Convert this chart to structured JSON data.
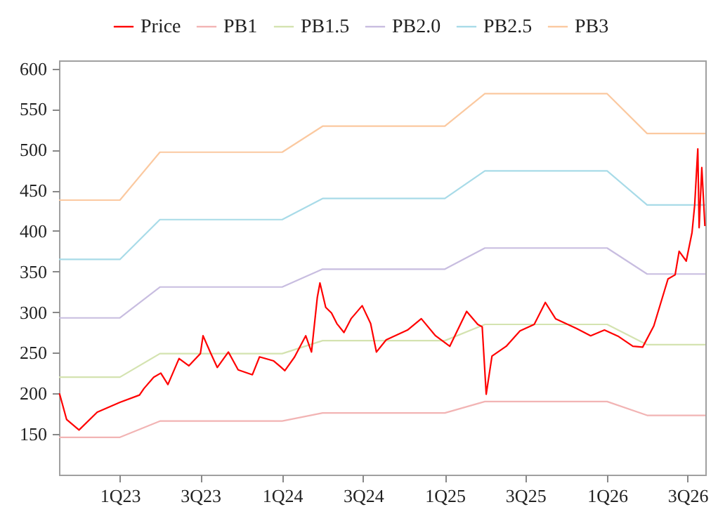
{
  "chart_data": {
    "type": "line",
    "legend": "top",
    "grid": false,
    "marker": "none",
    "line_style": "solid",
    "xlim": [
      "2022-08-17",
      "2026-08-10"
    ],
    "xticks": [
      {
        "value": "2023-01-01",
        "label": "1Q23"
      },
      {
        "value": "2023-07-01",
        "label": "3Q23"
      },
      {
        "value": "2024-01-01",
        "label": "1Q24"
      },
      {
        "value": "2024-07-01",
        "label": "3Q24"
      },
      {
        "value": "2025-01-01",
        "label": "1Q25"
      },
      {
        "value": "2025-07-01",
        "label": "3Q25"
      },
      {
        "value": "2026-01-01",
        "label": "1Q26"
      },
      {
        "value": "2026-07-01",
        "label": "3Q26"
      }
    ],
    "ylim": [
      100,
      610
    ],
    "yticks": [
      150,
      200,
      250,
      300,
      350,
      400,
      450,
      500,
      550,
      600
    ],
    "series": [
      {
        "name": "Price",
        "color": "#ff0000",
        "x": [
          "2022-08-18",
          "2022-09-03",
          "2022-10-01",
          "2022-11-11",
          "2023-01-01",
          "2023-02-14",
          "2023-02-24",
          "2023-03-18",
          "2023-04-03",
          "2023-04-19",
          "2023-05-14",
          "2023-06-05",
          "2023-07-01",
          "2023-07-07",
          "2023-07-23",
          "2023-08-08",
          "2023-09-02",
          "2023-09-24",
          "2023-10-26",
          "2023-11-11",
          "2023-12-13",
          "2023-12-28",
          "2024-01-07",
          "2024-01-29",
          "2024-02-23",
          "2024-03-07",
          "2024-03-20",
          "2024-03-26",
          "2024-04-08",
          "2024-04-21",
          "2024-05-03",
          "2024-05-19",
          "2024-06-04",
          "2024-06-29",
          "2024-07-18",
          "2024-07-31",
          "2024-08-22",
          "2024-10-09",
          "2024-11-09",
          "2024-12-11",
          "2025-01-12",
          "2025-02-19",
          "2025-03-16",
          "2025-03-26",
          "2025-04-04",
          "2025-04-17",
          "2025-05-19",
          "2025-06-19",
          "2025-07-21",
          "2025-08-15",
          "2025-09-07",
          "2025-10-24",
          "2025-11-25",
          "2025-12-26",
          "2026-01-27",
          "2026-02-28",
          "2026-03-22",
          "2026-04-16",
          "2026-05-02",
          "2026-05-18",
          "2026-06-03",
          "2026-06-12",
          "2026-06-28",
          "2026-07-11",
          "2026-07-17",
          "2026-07-24",
          "2026-07-27",
          "2026-08-02",
          "2026-08-09"
        ],
        "values": [
          200,
          168,
          155,
          177,
          189,
          198,
          206,
          220,
          225,
          211,
          243,
          234,
          249,
          271,
          251,
          232,
          251,
          229,
          223,
          245,
          240,
          233,
          228,
          245,
          271,
          251,
          318,
          336,
          306,
          299,
          286,
          275,
          292,
          308,
          286,
          251,
          266,
          278,
          292,
          271,
          258,
          301,
          285,
          282,
          199,
          246,
          258,
          277,
          285,
          312,
          292,
          280,
          271,
          278,
          270,
          258,
          257,
          283,
          312,
          341,
          346,
          375,
          363,
          398,
          432,
          501,
          404,
          478,
          406
        ]
      },
      {
        "name": "PB1",
        "color": "#f2b4b4",
        "x": [
          "2022-08-17",
          "2023-01-01",
          "2023-04-01",
          "2024-01-01",
          "2024-04-01",
          "2025-01-01",
          "2025-04-01",
          "2026-01-01",
          "2026-04-01",
          "2026-08-10"
        ],
        "values": [
          146,
          146,
          166,
          166,
          176,
          176,
          190,
          190,
          173,
          173
        ]
      },
      {
        "name": "PB1.5",
        "color": "#d4e3b0",
        "x": [
          "2022-08-17",
          "2023-01-01",
          "2023-04-01",
          "2024-01-01",
          "2024-04-01",
          "2025-01-01",
          "2025-04-01",
          "2026-01-01",
          "2026-04-01",
          "2026-08-10"
        ],
        "values": [
          220,
          220,
          249,
          249,
          265,
          265,
          285,
          285,
          260,
          260
        ]
      },
      {
        "name": "PB2.0",
        "color": "#c8bde0",
        "x": [
          "2022-08-17",
          "2023-01-01",
          "2023-04-01",
          "2024-01-01",
          "2024-04-01",
          "2025-01-01",
          "2025-04-01",
          "2026-01-01",
          "2026-04-01",
          "2026-08-10"
        ],
        "values": [
          293,
          293,
          331,
          331,
          353,
          353,
          379,
          379,
          347,
          347
        ]
      },
      {
        "name": "PB2.5",
        "color": "#a8dbe8",
        "x": [
          "2022-08-17",
          "2023-01-01",
          "2023-04-01",
          "2024-01-01",
          "2024-04-01",
          "2025-01-01",
          "2025-04-01",
          "2026-01-01",
          "2026-04-01",
          "2026-08-10"
        ],
        "values": [
          365,
          365,
          414,
          414,
          440,
          440,
          474,
          474,
          432,
          432
        ]
      },
      {
        "name": "PB3",
        "color": "#fbc9a0",
        "x": [
          "2022-08-17",
          "2023-01-01",
          "2023-04-01",
          "2024-01-01",
          "2024-04-01",
          "2025-01-01",
          "2025-04-01",
          "2026-01-01",
          "2026-04-01",
          "2026-08-10"
        ],
        "values": [
          438,
          438,
          497,
          497,
          529,
          529,
          569,
          569,
          520,
          520
        ]
      }
    ]
  }
}
